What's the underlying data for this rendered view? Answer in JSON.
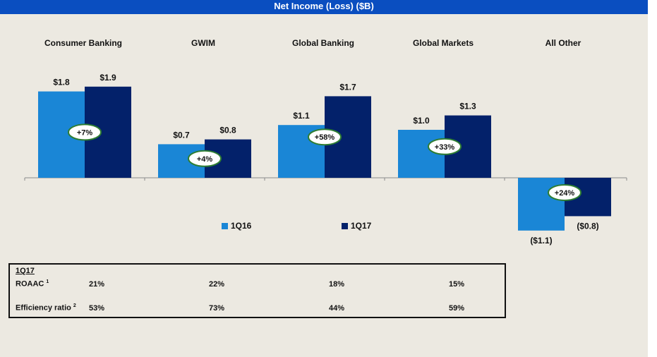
{
  "title": "Net Income (Loss) ($B)",
  "segments": [
    {
      "name": "Consumer Banking",
      "v1q16_label": "$1.8",
      "v1q17_label": "$1.9",
      "change": "+7%"
    },
    {
      "name": "GWIM",
      "v1q16_label": "$0.7",
      "v1q17_label": "$0.8",
      "change": "+4%"
    },
    {
      "name": "Global Banking",
      "v1q16_label": "$1.1",
      "v1q17_label": "$1.7",
      "change": "+58%"
    },
    {
      "name": "Global Markets",
      "v1q16_label": "$1.0",
      "v1q17_label": "$1.3",
      "change": "+33%"
    },
    {
      "name": "All Other",
      "v1q16_label": "($1.1)",
      "v1q17_label": "($0.8)",
      "change": "+24%"
    }
  ],
  "legend": {
    "series1": "1Q16",
    "series2": "1Q17"
  },
  "colors": {
    "q16": "#1a86d6",
    "q17": "#03216a",
    "title_bg": "#0a4ec0",
    "bubble_border": "#2e7d32"
  },
  "chart_data": {
    "type": "bar",
    "title": "Net Income (Loss) ($B)",
    "categories": [
      "Consumer Banking",
      "GWIM",
      "Global Banking",
      "Global Markets",
      "All Other"
    ],
    "series": [
      {
        "name": "1Q16",
        "values": [
          1.8,
          0.7,
          1.1,
          1.0,
          -1.1
        ]
      },
      {
        "name": "1Q17",
        "values": [
          1.9,
          0.8,
          1.7,
          1.3,
          -0.8
        ]
      }
    ],
    "ylim": [
      -1.1,
      1.9
    ],
    "xlabel": "",
    "ylabel": ""
  },
  "metrics": {
    "header": "1Q17",
    "roaac_label": "ROAAC",
    "roaac_sup": "1",
    "eff_label": "Efficiency ratio",
    "eff_sup": "2",
    "roaac": [
      "21%",
      "22%",
      "18%",
      "15%"
    ],
    "efficiency": [
      "53%",
      "73%",
      "44%",
      "59%"
    ]
  }
}
